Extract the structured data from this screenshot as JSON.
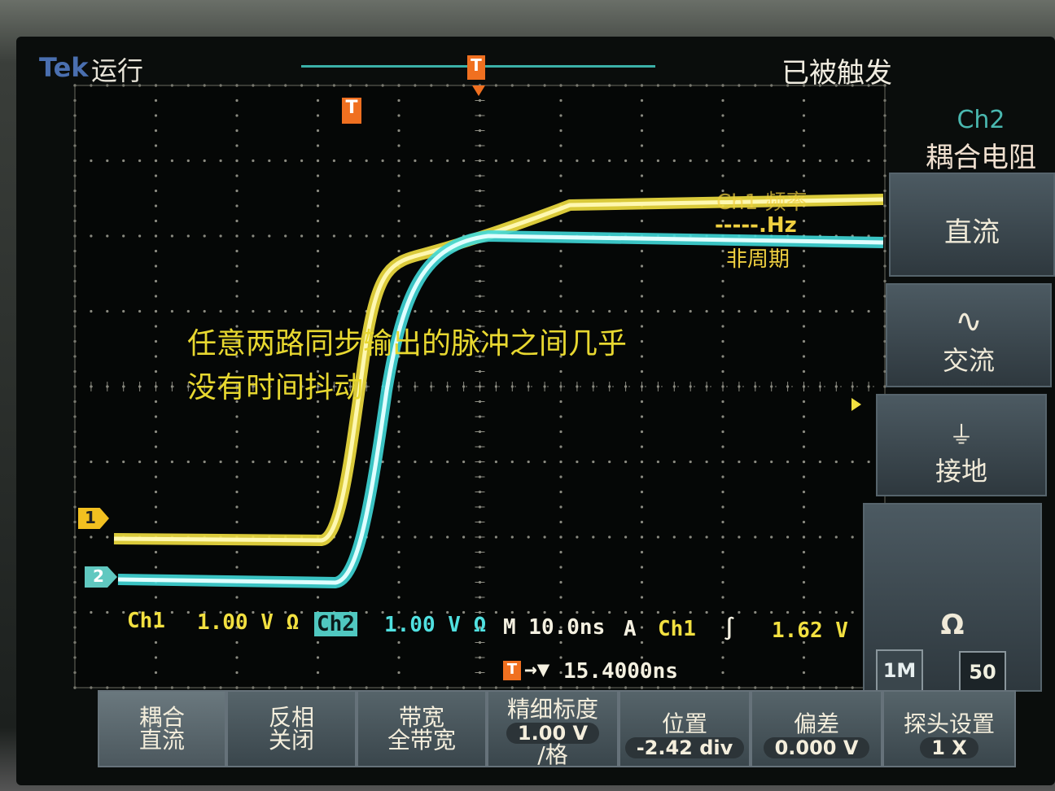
{
  "header": {
    "brand": "Tek",
    "run_state": "运行",
    "trigger_state": "已被触发",
    "trigger_marker": "T"
  },
  "right_panel": {
    "channel": "Ch2",
    "title": "耦合电阻",
    "options": [
      {
        "label": "直流",
        "icon": ""
      },
      {
        "label": "交流",
        "icon": "sine-icon"
      },
      {
        "label": "接地",
        "icon": "ground-icon"
      }
    ],
    "impedance_icon": "Ω",
    "impedance_options": [
      "1M",
      "50"
    ]
  },
  "readout": {
    "freq_label": "Ch1 频率",
    "freq_value": "-----.Hz",
    "freq_note": "非周期"
  },
  "annotation": {
    "line1": "任意两路同步输出的脉冲之间几乎",
    "line2": "没有时间抖动"
  },
  "status": {
    "ch1": "Ch1",
    "ch1_scale": "1.00 V Ω",
    "ch2": "Ch2",
    "ch2_scale": "1.00 V Ω",
    "timebase": "M 10.0ns",
    "trig_mode": "A",
    "trig_src": "Ch1",
    "trig_slope": "∫",
    "trig_level": "1.62 V",
    "trig_pos": "15.4000ns"
  },
  "markers": {
    "ch1": "1",
    "ch2": "2",
    "trigger": "T"
  },
  "bottom_menu": [
    {
      "label1": "耦合",
      "label2": "直流"
    },
    {
      "label1": "反相",
      "label2": "关闭"
    },
    {
      "label1": "带宽",
      "label2": "全带宽"
    },
    {
      "label1": "精细标度",
      "value": "1.00 V",
      "label2": "/格"
    },
    {
      "label1": "位置",
      "value": "-2.42 div"
    },
    {
      "label1": "偏差",
      "value": "0.000 V"
    },
    {
      "label1": "探头设置",
      "value": "1 X"
    }
  ],
  "colors": {
    "ch1": "#f2e040",
    "ch2": "#50e0e0",
    "trigger": "#f07020"
  }
}
